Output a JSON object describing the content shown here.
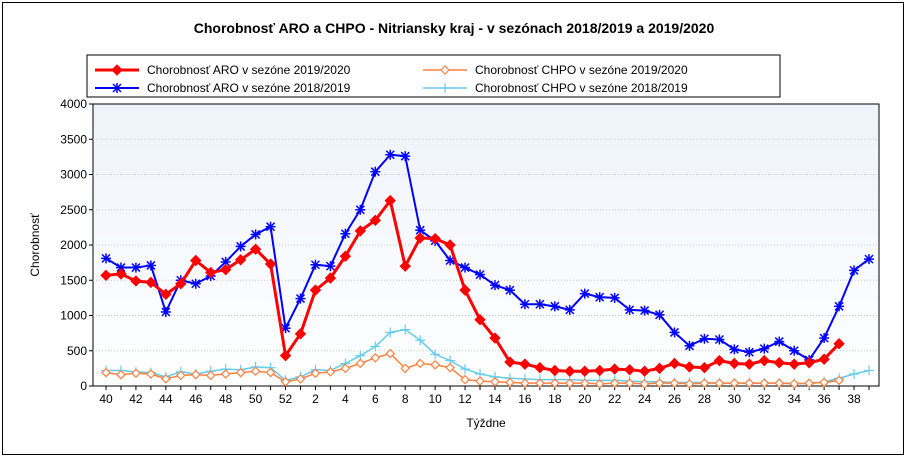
{
  "chart_data": {
    "type": "line",
    "title": "Chorobnosť ARO a CHPO - Nitriansky kraj - v sezónach 2018/2019 a 2019/2020",
    "xlabel": "Týždne",
    "ylabel": "Chorobnosť",
    "ylim": [
      0,
      4000
    ],
    "yticks": [
      "0",
      "500",
      "1000",
      "1500",
      "2000",
      "2500",
      "3000",
      "3500",
      "4000"
    ],
    "x": [
      "40",
      "41",
      "42",
      "43",
      "44",
      "45",
      "46",
      "47",
      "48",
      "49",
      "50",
      "51",
      "52",
      "1",
      "2",
      "3",
      "4",
      "5",
      "6",
      "7",
      "8",
      "9",
      "10",
      "11",
      "12",
      "13",
      "14",
      "15",
      "16",
      "17",
      "18",
      "19",
      "20",
      "21",
      "22",
      "23",
      "24",
      "25",
      "26",
      "27",
      "28",
      "29",
      "30",
      "31",
      "32",
      "33",
      "34",
      "35",
      "36",
      "37",
      "38",
      "39"
    ],
    "xtick_labels": [
      "40",
      "42",
      "44",
      "46",
      "48",
      "50",
      "52",
      "2",
      "4",
      "6",
      "8",
      "10",
      "12",
      "14",
      "16",
      "18",
      "20",
      "22",
      "24",
      "26",
      "28",
      "30",
      "32",
      "34",
      "36",
      "38"
    ],
    "grid": true,
    "legend_position": "top",
    "series": [
      {
        "name": "Chorobnosť ARO v sezóne 2019/2020",
        "color": "#ff0000",
        "marker": "diamond",
        "values": [
          1570,
          1590,
          1490,
          1470,
          1300,
          1450,
          1780,
          1610,
          1650,
          1790,
          1940,
          1730,
          430,
          740,
          1360,
          1530,
          1840,
          2200,
          2350,
          2630,
          1700,
          2100,
          2090,
          2000,
          1360,
          940,
          680,
          340,
          310,
          260,
          220,
          210,
          210,
          220,
          240,
          230,
          210,
          250,
          320,
          270,
          260,
          360,
          320,
          310,
          360,
          330,
          310,
          330,
          380,
          600,
          null,
          null
        ]
      },
      {
        "name": "Chorobnosť ARO v sezóne 2018/2019",
        "color": "#0000ff",
        "marker": "star",
        "values": [
          1810,
          1680,
          1680,
          1710,
          1050,
          1500,
          1450,
          1560,
          1760,
          1980,
          2150,
          2260,
          820,
          1240,
          1720,
          1700,
          2160,
          2500,
          3040,
          3280,
          3260,
          2210,
          2060,
          1780,
          1680,
          1580,
          1430,
          1360,
          1160,
          1160,
          1130,
          1080,
          1310,
          1260,
          1250,
          1080,
          1070,
          1010,
          760,
          570,
          670,
          660,
          520,
          480,
          530,
          630,
          500,
          370,
          680,
          1130,
          1640,
          1800
        ]
      },
      {
        "name": "Chorobnosť CHPO v sezóne 2019/2020",
        "color": "#ff8040",
        "marker": "diamond-open",
        "values": [
          190,
          160,
          180,
          170,
          100,
          150,
          160,
          150,
          170,
          190,
          210,
          190,
          60,
          100,
          180,
          200,
          250,
          320,
          400,
          460,
          250,
          320,
          300,
          260,
          90,
          70,
          60,
          50,
          40,
          40,
          40,
          40,
          40,
          30,
          40,
          40,
          30,
          40,
          40,
          30,
          40,
          40,
          40,
          40,
          40,
          40,
          30,
          40,
          50,
          80,
          null,
          null
        ]
      },
      {
        "name": "Chorobnosť CHPO v sezóne 2018/2019",
        "color": "#66ccee",
        "marker": "plus",
        "values": [
          220,
          220,
          200,
          190,
          130,
          200,
          170,
          210,
          240,
          230,
          270,
          260,
          80,
          130,
          230,
          220,
          320,
          430,
          560,
          760,
          800,
          650,
          450,
          360,
          240,
          170,
          130,
          110,
          100,
          90,
          90,
          90,
          80,
          80,
          80,
          70,
          60,
          60,
          50,
          50,
          50,
          40,
          40,
          40,
          40,
          40,
          40,
          30,
          60,
          110,
          170,
          220
        ]
      }
    ]
  }
}
